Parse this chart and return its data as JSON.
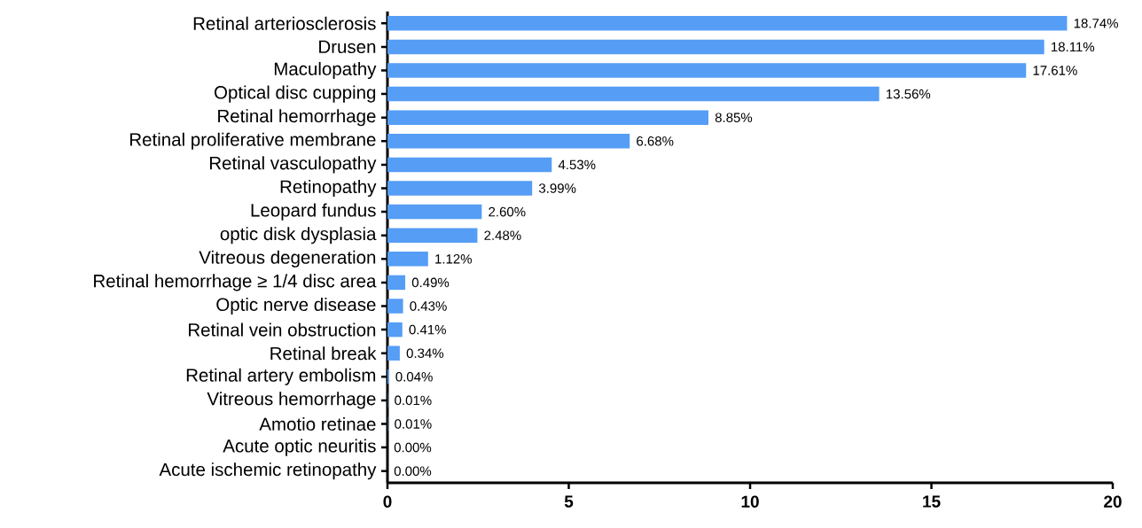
{
  "chart_data": {
    "type": "bar",
    "orientation": "horizontal",
    "categories": [
      "Retinal arteriosclerosis",
      "Drusen",
      "Maculopathy",
      "Optical disc cupping",
      "Retinal hemorrhage",
      "Retinal proliferative membrane",
      "Retinal vasculopathy",
      "Retinopathy",
      "Leopard fundus",
      "optic disk dysplasia",
      "Vitreous degeneration",
      "Retinal hemorrhage ≥ 1/4 disc area",
      "Optic nerve disease",
      "Retinal vein obstruction",
      "Retinal break",
      "Retinal artery embolism",
      "Vitreous hemorrhage",
      "Amotio retinae",
      "Acute optic neuritis",
      "Acute ischemic retinopathy"
    ],
    "values": [
      18.74,
      18.11,
      17.61,
      13.56,
      8.85,
      6.68,
      4.53,
      3.99,
      2.6,
      2.48,
      1.12,
      0.49,
      0.43,
      0.41,
      0.34,
      0.04,
      0.01,
      0.01,
      0.0,
      0.0
    ],
    "value_labels": [
      "18.74%",
      "18.11%",
      "17.61%",
      "13.56%",
      "8.85%",
      "6.68%",
      "4.53%",
      "3.99%",
      "2.60%",
      "2.48%",
      "1.12%",
      "0.49%",
      "0.43%",
      "0.41%",
      "0.34%",
      "0.04%",
      "0.01%",
      "0.01%",
      "0.00%",
      "0.00%"
    ],
    "color": "#559df5",
    "xlim": [
      0,
      20
    ],
    "xticks": [
      0,
      5,
      10,
      15,
      20
    ]
  }
}
